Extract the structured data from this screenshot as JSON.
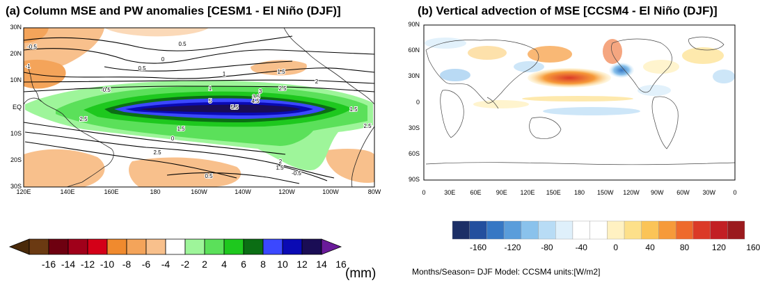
{
  "chart_data": [
    {
      "type": "contour_map",
      "title": "(a) Column MSE and PW anomalies [CESM1 - El Niño (DJF)]",
      "x_ticks": [
        "120E",
        "140E",
        "160E",
        "180",
        "160W",
        "140W",
        "120W",
        "100W",
        "80W"
      ],
      "y_ticks": [
        "30N",
        "20N",
        "10N",
        "EQ",
        "10S",
        "20S",
        "30S"
      ],
      "contour_labels": [
        "-0.5",
        "0.5",
        "-1",
        "0",
        "-0.5",
        "0.5",
        "1",
        "1.5",
        "2",
        "2.5",
        "3",
        "3.5",
        "4.5",
        "5",
        "5.5",
        "2.5",
        "1.5",
        "0",
        "2.5",
        "2",
        "1.5",
        "-0.5",
        "0.5",
        "1",
        "1.5",
        "2.5"
      ],
      "colorbar": {
        "levels": [
          "-16",
          "-14",
          "-12",
          "-10",
          "-8",
          "-6",
          "-4",
          "-2",
          "2",
          "4",
          "6",
          "8",
          "10",
          "12",
          "14",
          "16"
        ],
        "colors": [
          "#4a2a0a",
          "#6b3a12",
          "#6e0010",
          "#a0001a",
          "#d40018",
          "#f08a2e",
          "#f4a45a",
          "#f8c08c",
          "#ffffff",
          "#9ef59a",
          "#5be05a",
          "#1ec81e",
          "#0b6e14",
          "#3b48ff",
          "#0a0ab4",
          "#1a0d55",
          "#6a1b9a"
        ],
        "units": "(mm)"
      }
    },
    {
      "type": "heatmap_map",
      "title": "(b) Vertical advection of MSE [CCSM4 - El Niño (DJF)]",
      "x_ticks": [
        "0",
        "30E",
        "60E",
        "90E",
        "120E",
        "150E",
        "180",
        "150W",
        "120W",
        "90W",
        "60W",
        "30W",
        "0"
      ],
      "y_ticks": [
        "90N",
        "60N",
        "30N",
        "0",
        "30S",
        "60S",
        "90S"
      ],
      "colorbar": {
        "labels": [
          "-160",
          "-120",
          "-80",
          "-40",
          "0",
          "40",
          "80",
          "120",
          "160"
        ],
        "colors": [
          "#1c2f66",
          "#234f9e",
          "#3677c4",
          "#5a9ddb",
          "#8ac2ec",
          "#b8dcf5",
          "#dff0fb",
          "#ffffff",
          "#ffffff",
          "#fff1c2",
          "#fde08a",
          "#fbc457",
          "#f69a3a",
          "#ee6a2c",
          "#db3a27",
          "#c21f24",
          "#9b1a1e"
        ]
      },
      "meta": "Months/Season= DJF Model: CCSM4 units:[W/m2]"
    }
  ]
}
